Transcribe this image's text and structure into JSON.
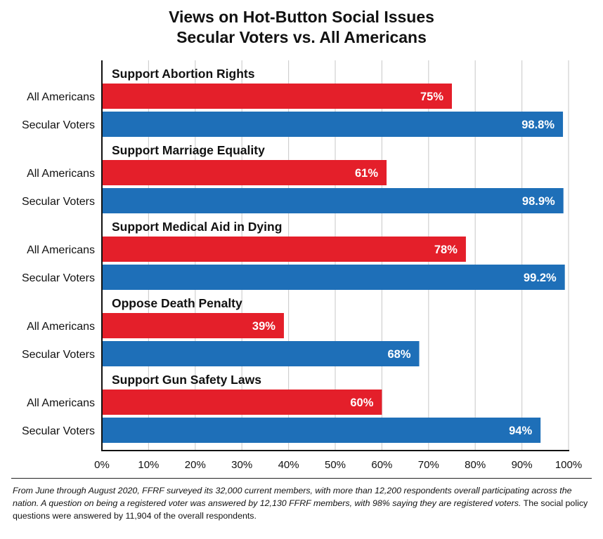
{
  "chart_data": {
    "type": "bar",
    "orientation": "horizontal",
    "title": "Views on Hot-Button Social Issues",
    "subtitle": "Secular Voters vs. All Americans",
    "xlim": [
      0,
      100
    ],
    "x_ticks": [
      "0%",
      "10%",
      "20%",
      "30%",
      "40%",
      "50%",
      "60%",
      "70%",
      "80%",
      "90%",
      "100%"
    ],
    "grid": true,
    "groups": [
      {
        "label": "Support Abortion Rights",
        "bars": [
          {
            "category": "All Americans",
            "value": 75,
            "label": "75%"
          },
          {
            "category": "Secular Voters",
            "value": 98.8,
            "label": "98.8%"
          }
        ]
      },
      {
        "label": "Support Marriage Equality",
        "bars": [
          {
            "category": "All Americans",
            "value": 61,
            "label": "61%"
          },
          {
            "category": "Secular Voters",
            "value": 98.9,
            "label": "98.9%"
          }
        ]
      },
      {
        "label": "Support Medical Aid in Dying",
        "bars": [
          {
            "category": "All Americans",
            "value": 78,
            "label": "78%"
          },
          {
            "category": "Secular Voters",
            "value": 99.2,
            "label": "99.2%"
          }
        ]
      },
      {
        "label": "Oppose Death Penalty",
        "bars": [
          {
            "category": "All Americans",
            "value": 39,
            "label": "39%"
          },
          {
            "category": "Secular Voters",
            "value": 68,
            "label": "68%"
          }
        ]
      },
      {
        "label": "Support Gun Safety Laws",
        "bars": [
          {
            "category": "All Americans",
            "value": 60,
            "label": "60%"
          },
          {
            "category": "Secular Voters",
            "value": 94,
            "label": "94%"
          }
        ]
      }
    ],
    "colors": {
      "All Americans": "#e41f2a",
      "Secular Voters": "#1e6fb8",
      "grid": "#d0d0d0",
      "axis": "#111111"
    }
  },
  "footnote": {
    "italic_part": "From June through August 2020, FFRF surveyed its 32,000 current members, with more than 12,200 respondents overall participating across the nation. A question on being a registered voter was answered by 12,130 FFRF members, with 98% saying they are registered voters.",
    "normal_part": " The social policy questions were answered by 11,904 of the overall respondents."
  }
}
